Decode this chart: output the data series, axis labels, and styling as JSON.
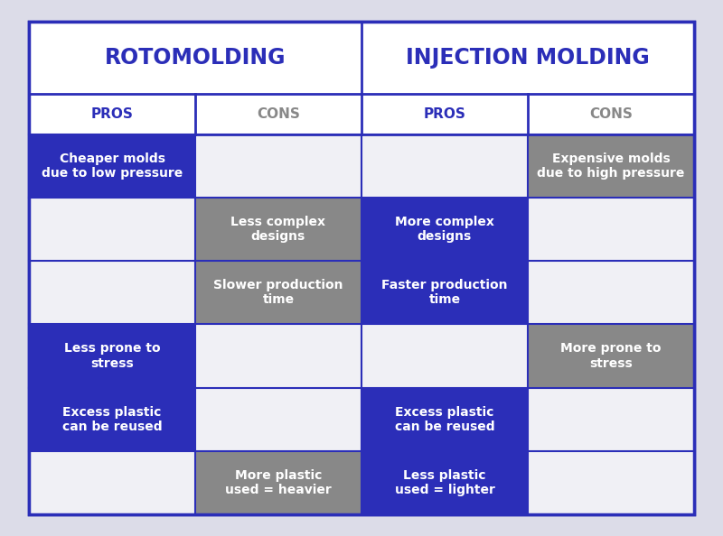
{
  "title_left": "ROTOMOLDING",
  "title_right": "INJECTION MOLDING",
  "col_headers": [
    "PROS",
    "CONS",
    "PROS",
    "CONS"
  ],
  "col_header_text_colors": [
    "#2b2eb8",
    "#888888",
    "#2b2eb8",
    "#888888"
  ],
  "rows": [
    [
      {
        "text": "Cheaper molds\ndue to low pressure",
        "bg": "#2b2eb8",
        "fg": "#ffffff"
      },
      {
        "text": "",
        "bg": "#f0f0f5",
        "fg": "#ffffff"
      },
      {
        "text": "",
        "bg": "#f0f0f5",
        "fg": "#ffffff"
      },
      {
        "text": "Expensive molds\ndue to high pressure",
        "bg": "#888888",
        "fg": "#ffffff"
      }
    ],
    [
      {
        "text": "",
        "bg": "#f0f0f5",
        "fg": "#ffffff"
      },
      {
        "text": "Less complex\ndesigns",
        "bg": "#888888",
        "fg": "#ffffff"
      },
      {
        "text": "More complex\ndesigns",
        "bg": "#2b2eb8",
        "fg": "#ffffff"
      },
      {
        "text": "",
        "bg": "#f0f0f5",
        "fg": "#ffffff"
      }
    ],
    [
      {
        "text": "",
        "bg": "#f0f0f5",
        "fg": "#ffffff"
      },
      {
        "text": "Slower production\ntime",
        "bg": "#888888",
        "fg": "#ffffff"
      },
      {
        "text": "Faster production\ntime",
        "bg": "#2b2eb8",
        "fg": "#ffffff"
      },
      {
        "text": "",
        "bg": "#f0f0f5",
        "fg": "#ffffff"
      }
    ],
    [
      {
        "text": "Less prone to\nstress",
        "bg": "#2b2eb8",
        "fg": "#ffffff"
      },
      {
        "text": "",
        "bg": "#f0f0f5",
        "fg": "#ffffff"
      },
      {
        "text": "",
        "bg": "#f0f0f5",
        "fg": "#ffffff"
      },
      {
        "text": "More prone to\nstress",
        "bg": "#888888",
        "fg": "#ffffff"
      }
    ],
    [
      {
        "text": "Excess plastic\ncan be reused",
        "bg": "#2b2eb8",
        "fg": "#ffffff"
      },
      {
        "text": "",
        "bg": "#f0f0f5",
        "fg": "#ffffff"
      },
      {
        "text": "Excess plastic\ncan be reused",
        "bg": "#2b2eb8",
        "fg": "#ffffff"
      },
      {
        "text": "",
        "bg": "#f0f0f5",
        "fg": "#ffffff"
      }
    ],
    [
      {
        "text": "",
        "bg": "#f0f0f5",
        "fg": "#ffffff"
      },
      {
        "text": "More plastic\nused = heavier",
        "bg": "#888888",
        "fg": "#ffffff"
      },
      {
        "text": "Less plastic\nused = lighter",
        "bg": "#2b2eb8",
        "fg": "#ffffff"
      },
      {
        "text": "",
        "bg": "#f0f0f5",
        "fg": "#ffffff"
      }
    ]
  ],
  "outer_border_color": "#2b2eb8",
  "grid_color": "#2b2eb8",
  "title_bg_color": "#ffffff",
  "title_text_color": "#2b2eb8",
  "header_row_bg": "#ffffff",
  "figure_bg": "#dcdce8"
}
